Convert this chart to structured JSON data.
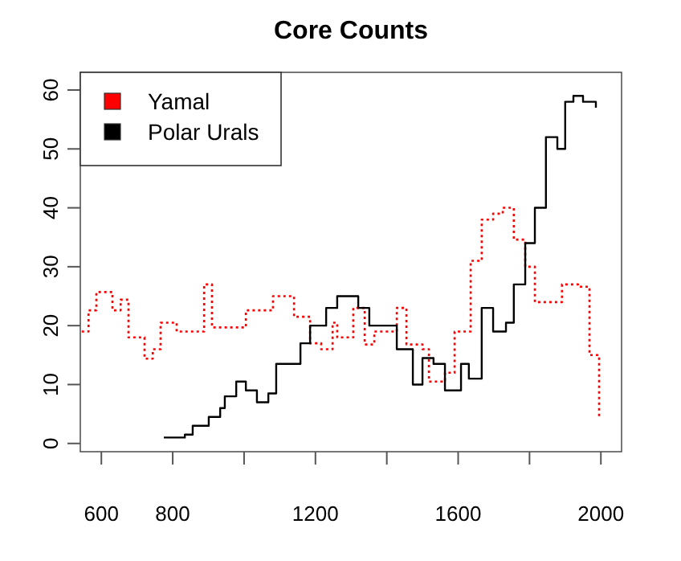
{
  "chart_data": {
    "type": "step",
    "title": "Core Counts",
    "xlim": [
      541,
      2058
    ],
    "ylim": [
      -1.4,
      63
    ],
    "xticks": [
      600,
      800,
      {
        "value": 1000,
        "label": null
      },
      1200,
      {
        "value": 1400,
        "label": null
      },
      1600,
      {
        "value": 1800,
        "label": null
      },
      2000
    ],
    "yticks": [
      0,
      10,
      20,
      30,
      40,
      50,
      60
    ],
    "grid": false,
    "legend": "top left",
    "series": [
      {
        "name": "Yamal",
        "color": "#ff0000",
        "line_style": "dotted",
        "x": [
          545,
          564,
          586,
          631,
          654,
          676,
          721,
          744,
          766,
          811,
          888,
          910,
          1005,
          1081,
          1140,
          1185,
          1216,
          1248,
          1261,
          1306,
          1338,
          1365,
          1428,
          1455,
          1500,
          1518,
          1563,
          1590,
          1635,
          1666,
          1698,
          1725,
          1756,
          1788,
          1815,
          1860,
          1891,
          1936,
          1968,
          1995
        ],
        "values": [
          19,
          22.6,
          25.7,
          22.6,
          24.4,
          18,
          14.4,
          16,
          20.5,
          19,
          27,
          19.7,
          22.6,
          25,
          21.5,
          17,
          16,
          20.5,
          18,
          23,
          16.8,
          19,
          23,
          16.8,
          16,
          10.5,
          12,
          19,
          31,
          38,
          39,
          40,
          34.6,
          30,
          24,
          24,
          27,
          26.6,
          15,
          4.5
        ]
      },
      {
        "name": "Polar Urals",
        "color": "#000000",
        "line_style": "solid",
        "x": [
          775,
          811,
          834,
          856,
          901,
          933,
          946,
          978,
          1005,
          1036,
          1068,
          1090,
          1126,
          1158,
          1185,
          1230,
          1261,
          1293,
          1320,
          1351,
          1383,
          1428,
          1473,
          1500,
          1531,
          1563,
          1608,
          1630,
          1666,
          1698,
          1734,
          1756,
          1788,
          1815,
          1846,
          1878,
          1900,
          1923,
          1950,
          1986
        ],
        "values": [
          1,
          1,
          1.5,
          3,
          4.5,
          6,
          8,
          10.5,
          9,
          7,
          8.5,
          13.5,
          13.5,
          17,
          20,
          23,
          25,
          25,
          23,
          20,
          20,
          16,
          10,
          14.5,
          13.5,
          9,
          13.5,
          11,
          23,
          19,
          20.5,
          27,
          34,
          40,
          52,
          50,
          58,
          59,
          58,
          57
        ]
      }
    ]
  }
}
